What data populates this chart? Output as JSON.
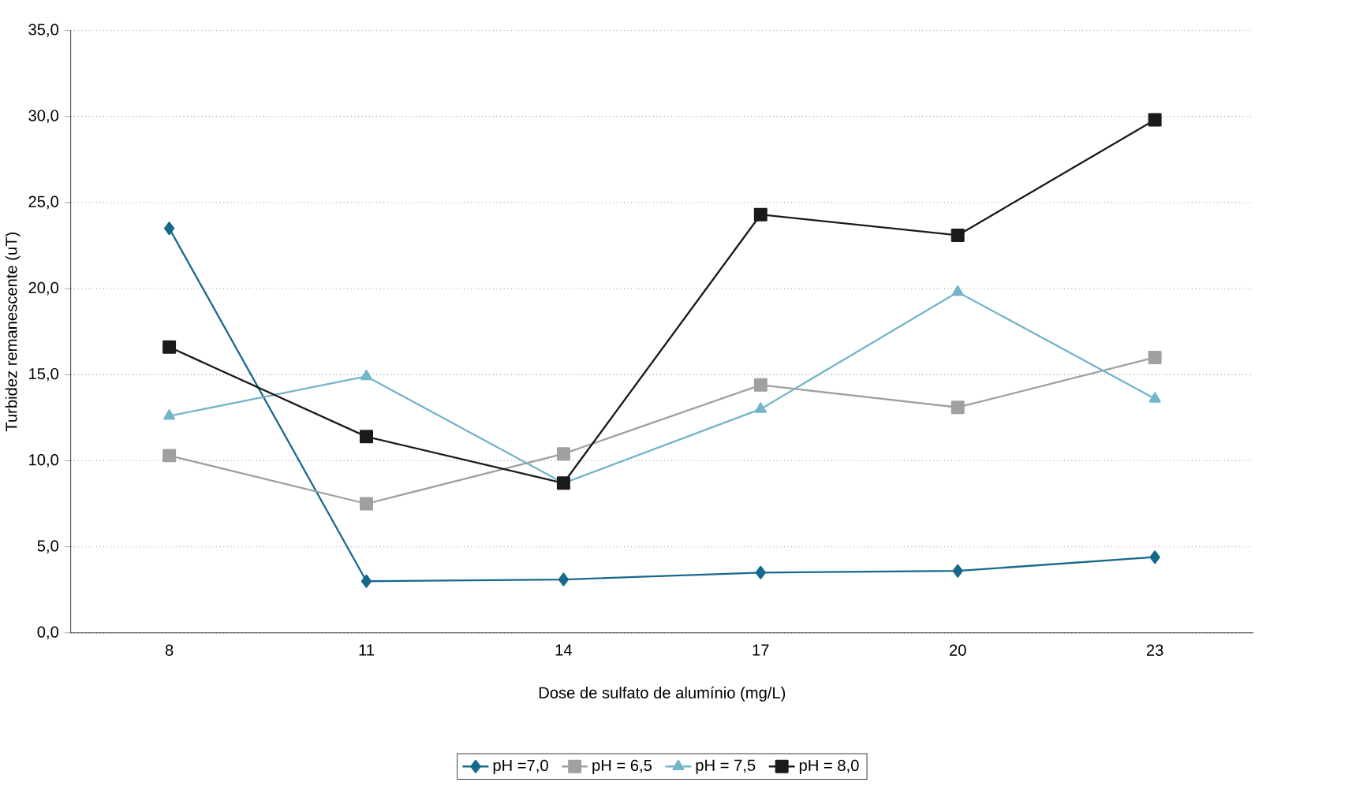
{
  "chart_data": {
    "type": "line",
    "xlabel": "Dose de sulfato de alumínio (mg/L)",
    "ylabel": "Turbidez remanescente (uT)",
    "categories": [
      "8",
      "11",
      "14",
      "17",
      "20",
      "23"
    ],
    "series": [
      {
        "name": "pH =7,0",
        "color": "#17698c",
        "marker": "diamond",
        "values": [
          23.5,
          3.0,
          3.1,
          3.5,
          3.6,
          4.4
        ]
      },
      {
        "name": "pH = 6,5",
        "color": "#a0a0a0",
        "marker": "square",
        "values": [
          10.3,
          7.5,
          10.4,
          14.4,
          13.1,
          16.0
        ]
      },
      {
        "name": "pH = 7,5",
        "color": "#74b5c9",
        "marker": "triangle",
        "values": [
          12.6,
          14.9,
          8.7,
          13.0,
          19.8,
          13.6
        ]
      },
      {
        "name": "pH = 8,0",
        "color": "#1a1a1a",
        "marker": "square",
        "values": [
          16.6,
          11.4,
          8.7,
          24.3,
          23.1,
          29.8
        ]
      }
    ],
    "ylim": [
      0,
      35
    ],
    "yticks": [
      {
        "value": 0,
        "label": "0,0"
      },
      {
        "value": 5,
        "label": "5,0"
      },
      {
        "value": 10,
        "label": "10,0"
      },
      {
        "value": 15,
        "label": "15,0"
      },
      {
        "value": 20,
        "label": "20,0"
      },
      {
        "value": 25,
        "label": "25,0"
      },
      {
        "value": 30,
        "label": "30,0"
      },
      {
        "value": 35,
        "label": "35,0"
      }
    ],
    "grid": "y",
    "legend": "bottom",
    "line_style": "solid"
  }
}
